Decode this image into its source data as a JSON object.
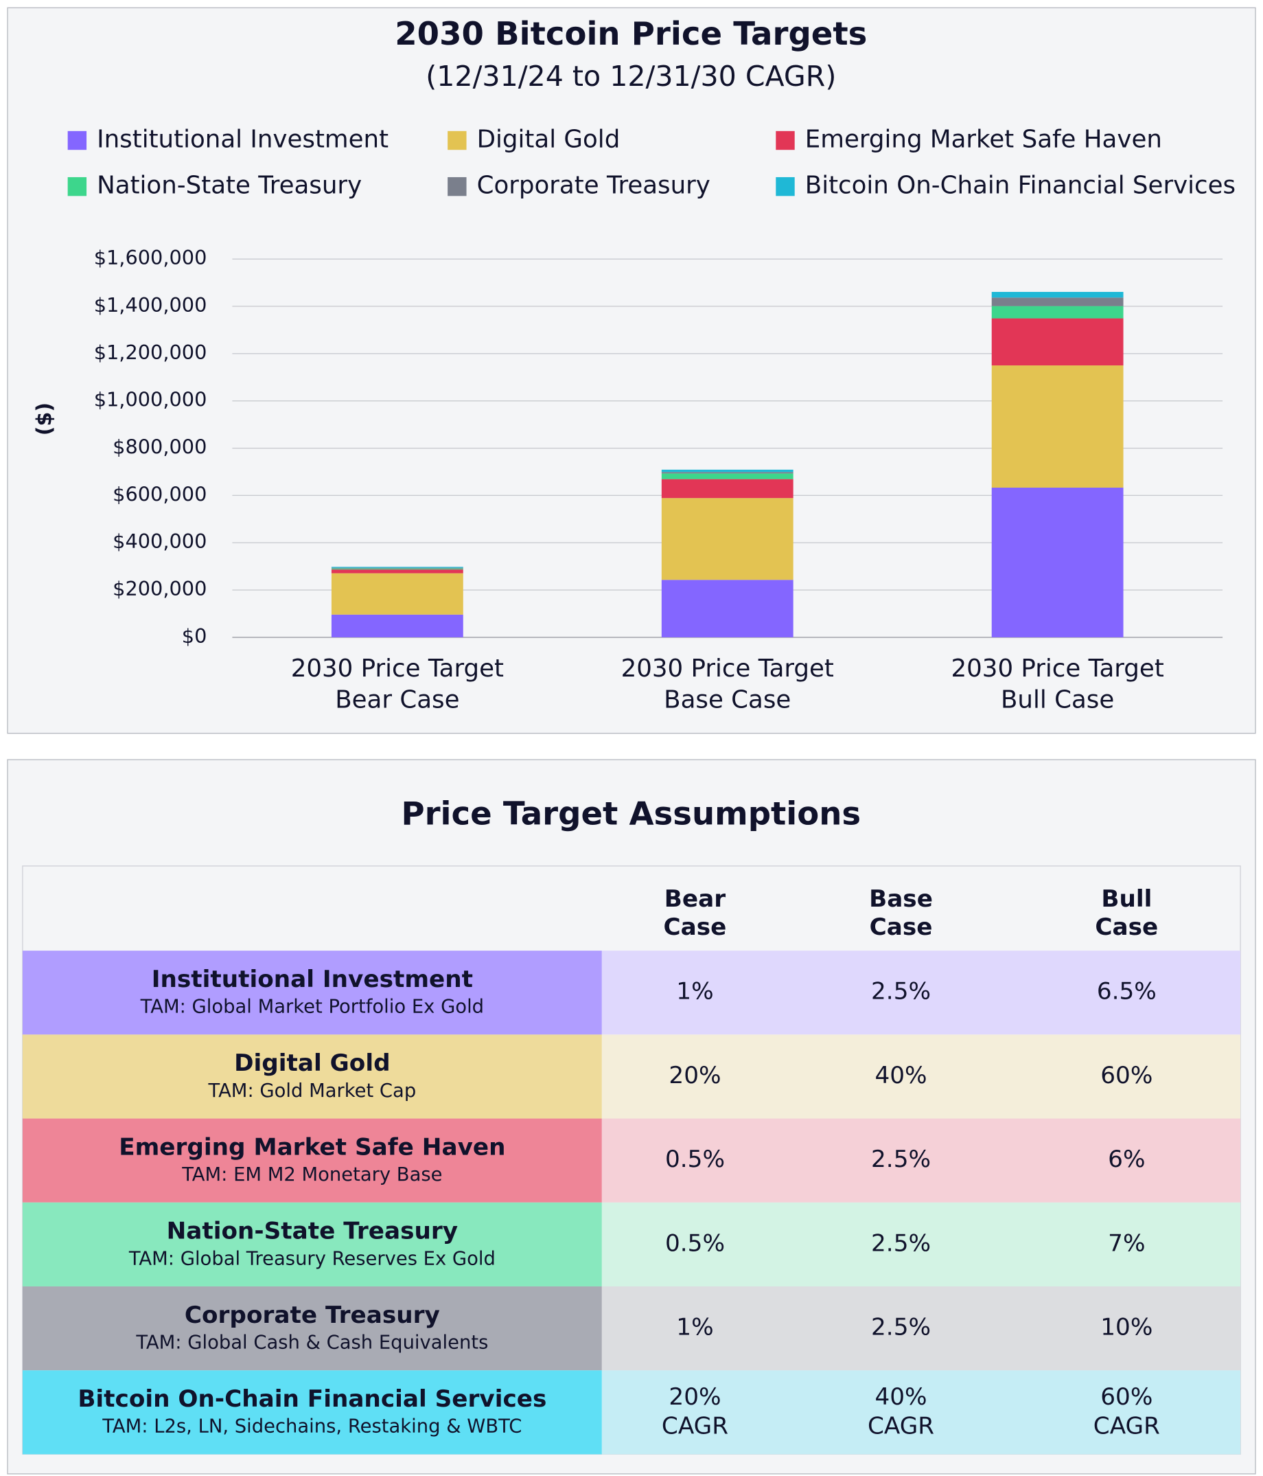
{
  "chart_data": {
    "type": "stacked_bar",
    "title": "2030 Bitcoin Price Targets",
    "subtitle": "(12/31/24 to 12/31/30 CAGR)",
    "y_label": "($)",
    "categories": [
      "2030 Price Target\nBear Case",
      "2030 Price Target\nBase Case",
      "2030 Price Target\nBull Case"
    ],
    "series": [
      {
        "name": "Institutional Investment",
        "color": "#8466ff",
        "values": [
          96000,
          243000,
          633000
        ]
      },
      {
        "name": "Digital Gold",
        "color": "#e3c352",
        "values": [
          175000,
          346000,
          517000
        ]
      },
      {
        "name": "Emerging Market Safe Haven",
        "color": "#e23656",
        "values": [
          16000,
          80000,
          199000
        ]
      },
      {
        "name": "Nation-State Treasury",
        "color": "#3dd68c",
        "values": [
          4000,
          24000,
          52000
        ]
      },
      {
        "name": "Corporate Treasury",
        "color": "#7a7f8c",
        "values": [
          3000,
          6000,
          36000
        ]
      },
      {
        "name": "Bitcoin On-Chain Financial Services",
        "color": "#1fb8d6",
        "values": [
          4000,
          10000,
          24000
        ]
      }
    ],
    "ylim": [
      0,
      1600000
    ],
    "yticks": [
      {
        "value": 0,
        "label": "$0"
      },
      {
        "value": 200000,
        "label": "$200,000"
      },
      {
        "value": 400000,
        "label": "$400,000"
      },
      {
        "value": 600000,
        "label": "$600,000"
      },
      {
        "value": 800000,
        "label": "$800,000"
      },
      {
        "value": 1000000,
        "label": "$1,000,000"
      },
      {
        "value": 1200000,
        "label": "$1,200,000"
      },
      {
        "value": 1400000,
        "label": "$1,400,000"
      },
      {
        "value": 1600000,
        "label": "$1,600,000"
      }
    ],
    "grid": true
  },
  "table": {
    "title": "Price Target Assumptions",
    "header": [
      "Bear\nCase",
      "Base\nCase",
      "Bull\nCase"
    ],
    "rows": [
      {
        "name": "Institutional Investment",
        "tam": "TAM: Global Market Portfolio Ex Gold",
        "values": [
          "1%",
          "2.5%",
          "6.5%"
        ]
      },
      {
        "name": "Digital Gold",
        "tam": "TAM: Gold Market Cap",
        "values": [
          "20%",
          "40%",
          "60%"
        ]
      },
      {
        "name": "Emerging Market Safe Haven",
        "tam": "TAM: EM M2 Monetary Base",
        "values": [
          "0.5%",
          "2.5%",
          "6%"
        ]
      },
      {
        "name": "Nation-State Treasury",
        "tam": "TAM: Global Treasury Reserves Ex Gold",
        "values": [
          "0.5%",
          "2.5%",
          "7%"
        ]
      },
      {
        "name": "Corporate Treasury",
        "tam": "TAM: Global Cash & Cash Equivalents",
        "values": [
          "1%",
          "2.5%",
          "10%"
        ]
      },
      {
        "name": "Bitcoin On-Chain Financial Services",
        "tam": "TAM: L2s, LN, Sidechains, Restaking & WBTC",
        "values": [
          "20%\nCAGR",
          "40%\nCAGR",
          "60%\nCAGR"
        ]
      }
    ]
  }
}
